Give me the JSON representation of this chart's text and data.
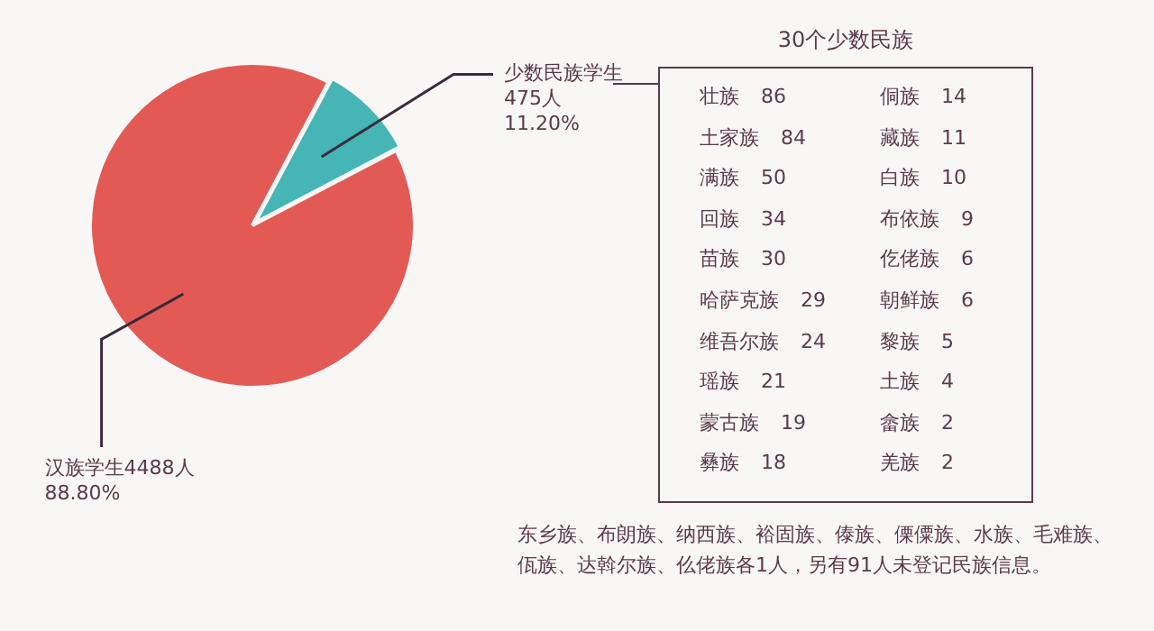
{
  "chart_data": [
    {
      "type": "pie",
      "categories": [
        "少数民族学生",
        "汉族学生"
      ],
      "values": [
        475,
        4488
      ],
      "colors": [
        "#45b5b5",
        "#e35a55"
      ],
      "value_labels": [
        "475人\n11.20%",
        "4488人\n88.80%"
      ],
      "legend": false
    },
    {
      "type": "other",
      "title": "30个少数民族",
      "categories": [
        "壮族",
        "土家族",
        "满族",
        "回族",
        "苗族",
        "哈萨克族",
        "维吾尔族",
        "瑶族",
        "蒙古族",
        "彝族",
        "侗族",
        "藏族",
        "白族",
        "布依族",
        "仡佬族",
        "朝鲜族",
        "黎族",
        "土族",
        "畲族",
        "羌族"
      ],
      "values": [
        86,
        84,
        50,
        34,
        30,
        29,
        24,
        21,
        19,
        18,
        14,
        11,
        10,
        9,
        6,
        6,
        5,
        4,
        2,
        2
      ],
      "data_labels": true,
      "annotations": [
        "东乡族、布朗族、纳西族、裕固族、傣族、傈僳族、水族、毛难族、佤族、达斡尔族、仫佬族各1人，另有91人未登记民族信息。"
      ]
    }
  ]
}
